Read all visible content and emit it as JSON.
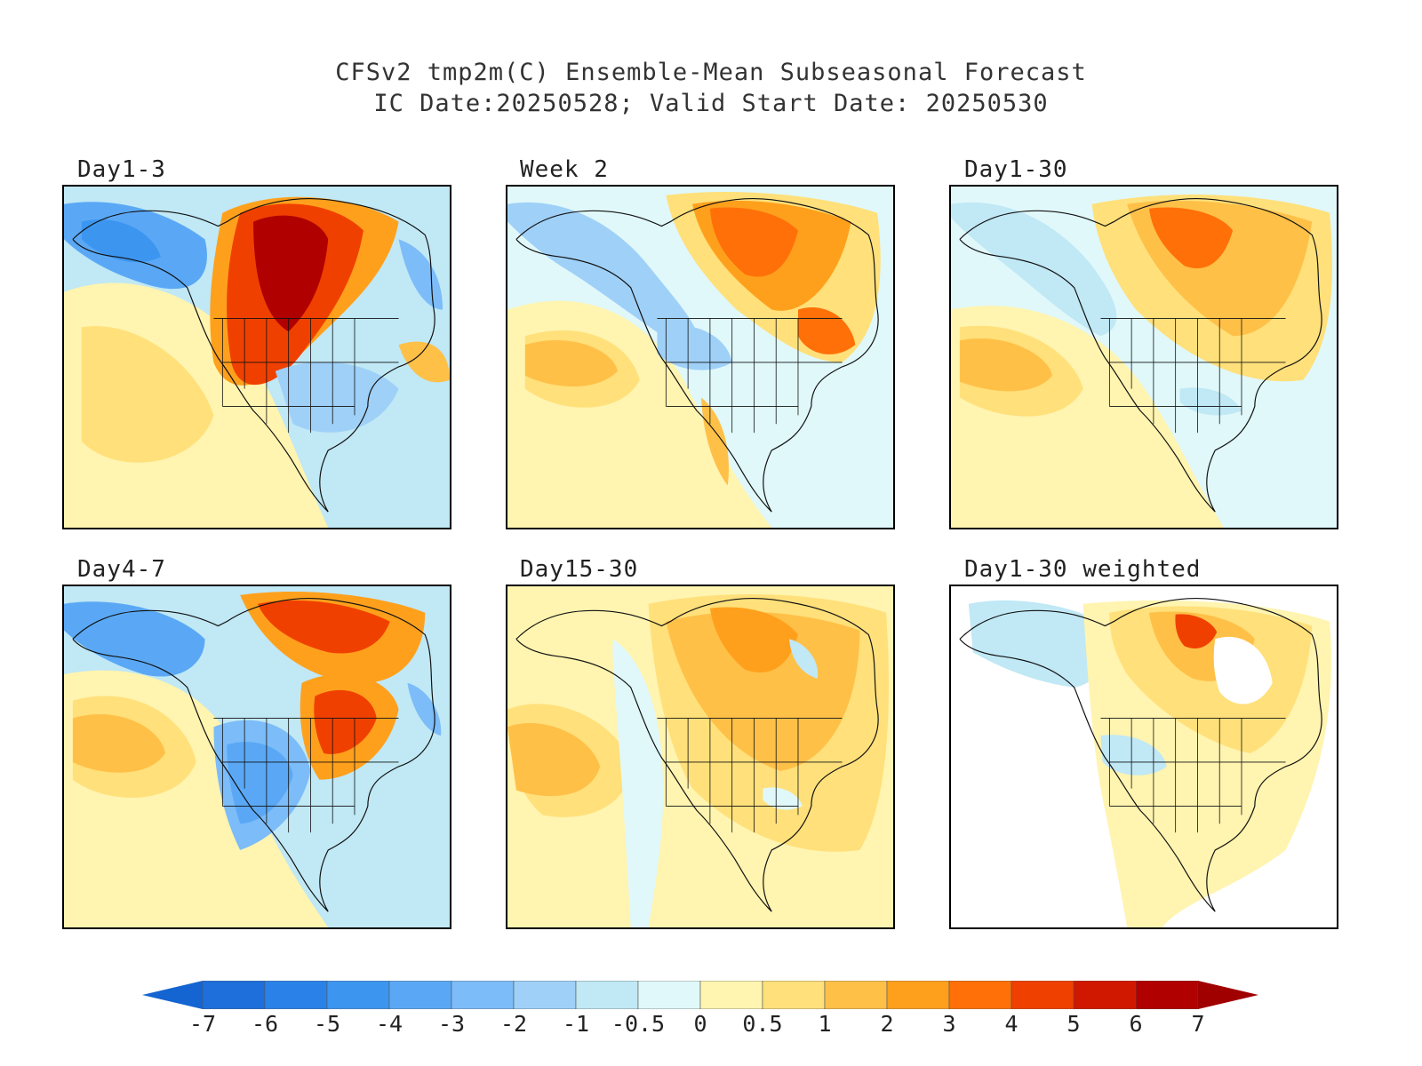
{
  "title": {
    "line1": "CFSv2 tmp2m(C) Ensemble-Mean Subseasonal Forecast",
    "line2": "IC Date:20250528; Valid Start Date: 20250530"
  },
  "panels": [
    {
      "id": "day1-3",
      "label": "Day1-3",
      "row": 0,
      "col": 0,
      "pattern": "p1"
    },
    {
      "id": "week2",
      "label": "Week 2",
      "row": 0,
      "col": 1,
      "pattern": "p2"
    },
    {
      "id": "day1-30",
      "label": "Day1-30",
      "row": 0,
      "col": 2,
      "pattern": "p3"
    },
    {
      "id": "day4-7",
      "label": "Day4-7",
      "row": 1,
      "col": 0,
      "pattern": "p4"
    },
    {
      "id": "day15-30",
      "label": "Day15-30",
      "row": 1,
      "col": 1,
      "pattern": "p5"
    },
    {
      "id": "day1-30-weighted",
      "label": "Day1-30 weighted",
      "row": 1,
      "col": 2,
      "pattern": "p6"
    }
  ],
  "colorbar": {
    "labels": [
      "-7",
      "-6",
      "-5",
      "-4",
      "-3",
      "-2",
      "-1",
      "-0.5",
      "0",
      "0.5",
      "1",
      "2",
      "3",
      "4",
      "5",
      "6",
      "7"
    ],
    "colors": [
      "#1e6fdc",
      "#2a82e8",
      "#3c96f0",
      "#5aa8f5",
      "#7cbcf8",
      "#9fd0f8",
      "#c0e8f5",
      "#e0f8fa",
      "#fff4b0",
      "#ffe07a",
      "#ffc048",
      "#ffa01c",
      "#ff7008",
      "#f04000",
      "#d01800",
      "#b00000"
    ],
    "low_end_color": "#1464d2",
    "high_end_color": "#a00000"
  }
}
